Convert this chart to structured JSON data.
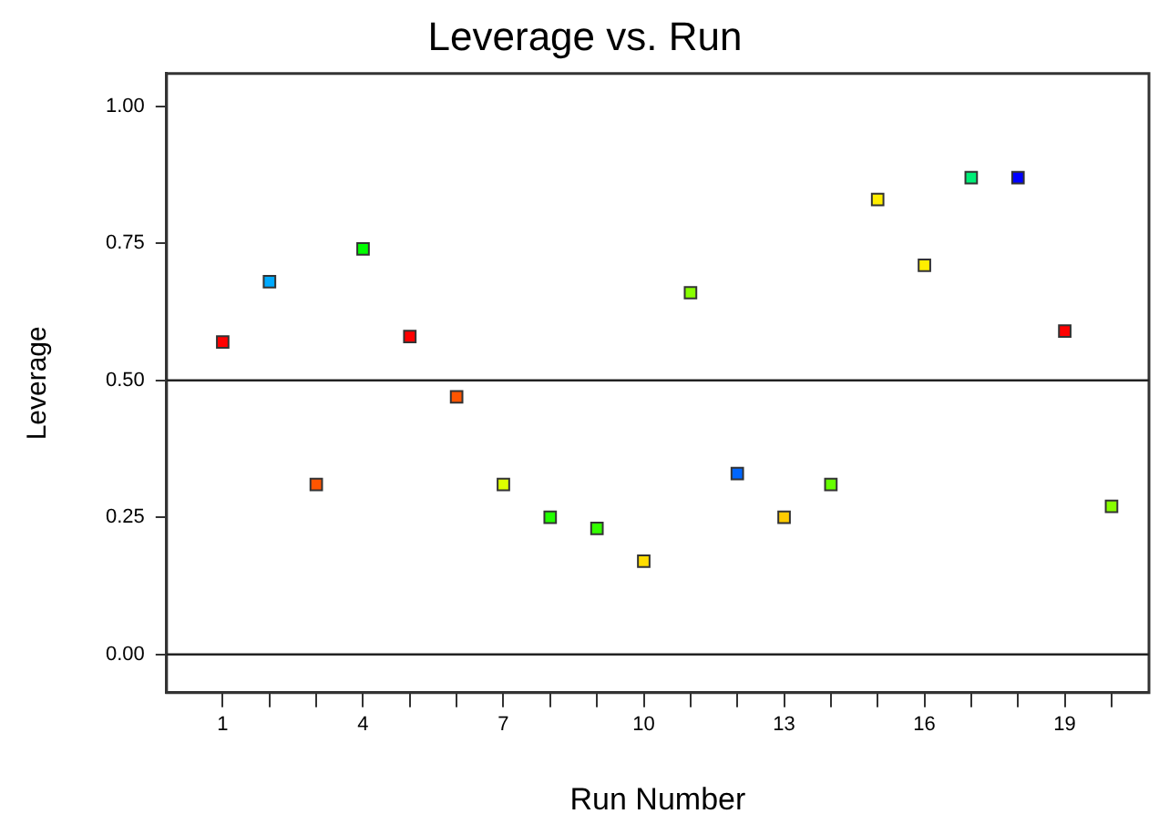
{
  "chart_data": {
    "type": "scatter",
    "title": "Leverage vs. Run",
    "xlabel": "Run Number",
    "ylabel": "Leverage",
    "x": [
      1,
      2,
      3,
      4,
      5,
      6,
      7,
      8,
      9,
      10,
      11,
      12,
      13,
      14,
      15,
      16,
      17,
      18,
      19,
      20
    ],
    "values": [
      0.57,
      0.68,
      0.31,
      0.74,
      0.58,
      0.47,
      0.31,
      0.25,
      0.23,
      0.17,
      0.66,
      0.33,
      0.25,
      0.31,
      0.83,
      0.71,
      0.87,
      0.87,
      0.59,
      0.27
    ],
    "colors": [
      "#ff0000",
      "#00aaff",
      "#ff5500",
      "#00ff00",
      "#ff0000",
      "#ff5500",
      "#ddff00",
      "#22ff00",
      "#33ff00",
      "#ffdd00",
      "#88ff00",
      "#0066ff",
      "#ffcc00",
      "#66ff00",
      "#ffee00",
      "#ffee00",
      "#00ee77",
      "#0000ff",
      "#ff0000",
      "#88ff00"
    ],
    "marker": "square",
    "xlim": [
      -0.2,
      20.8
    ],
    "xticks": [
      1,
      {
        "value": 2,
        "label": null
      },
      {
        "value": 3,
        "label": null
      },
      4,
      {
        "value": 5,
        "label": null
      },
      {
        "value": 6,
        "label": null
      },
      7,
      {
        "value": 8,
        "label": null
      },
      {
        "value": 9,
        "label": null
      },
      10,
      {
        "value": 11,
        "label": null
      },
      {
        "value": 12,
        "label": null
      },
      13,
      {
        "value": 14,
        "label": null
      },
      {
        "value": 15,
        "label": null
      },
      16,
      {
        "value": 17,
        "label": null
      },
      {
        "value": 18,
        "label": null
      },
      19,
      {
        "value": 20,
        "label": null
      }
    ],
    "ylim": [
      -0.07,
      1.06
    ],
    "yticks": [
      {
        "value": 0,
        "label": "0.00"
      },
      {
        "value": 0.25,
        "label": "0.25"
      },
      {
        "value": 0.5,
        "label": "0.50"
      },
      {
        "value": 0.75,
        "label": "0.75"
      },
      {
        "value": 1,
        "label": "1.00"
      }
    ],
    "grid": false,
    "legend": false,
    "ref_lines": [
      {
        "axis": "y",
        "value": 0,
        "color": "#222222"
      },
      {
        "axis": "y",
        "value": 0.5,
        "color": "#222222"
      }
    ]
  }
}
